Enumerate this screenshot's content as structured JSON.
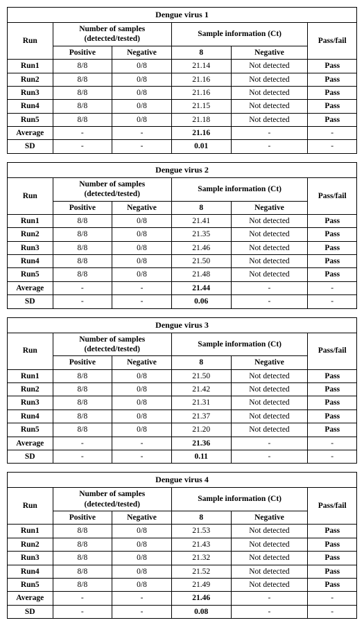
{
  "tables": [
    {
      "title": "Dengue  virus  1",
      "header": {
        "run": "Run",
        "num_samples_line1": "Number  of  samples",
        "num_samples_line2": "(detected/tested)",
        "sample_info": "Sample  information  (Ct)",
        "passfail": "Pass/fail",
        "positive": "Positive",
        "negative": "Negative",
        "ct_pos": "8",
        "ct_neg": "Negative"
      },
      "rows": [
        {
          "label": "Run1",
          "pos": "8/8",
          "neg": "0/8",
          "ct": "21.14",
          "ctneg": "Not  detected",
          "pf": "Pass"
        },
        {
          "label": "Run2",
          "pos": "8/8",
          "neg": "0/8",
          "ct": "21.16",
          "ctneg": "Not  detected",
          "pf": "Pass"
        },
        {
          "label": "Run3",
          "pos": "8/8",
          "neg": "0/8",
          "ct": "21.16",
          "ctneg": "Not  detected",
          "pf": "Pass"
        },
        {
          "label": "Run4",
          "pos": "8/8",
          "neg": "0/8",
          "ct": "21.15",
          "ctneg": "Not  detected",
          "pf": "Pass"
        },
        {
          "label": "Run5",
          "pos": "8/8",
          "neg": "0/8",
          "ct": "21.18",
          "ctneg": "Not  detected",
          "pf": "Pass"
        }
      ],
      "summary": [
        {
          "label": "Average",
          "pos": "-",
          "neg": "-",
          "ct": "21.16",
          "ctneg": "-",
          "pf": "-",
          "bold_ct": true
        },
        {
          "label": "SD",
          "pos": "-",
          "neg": "-",
          "ct": "0.01",
          "ctneg": "-",
          "pf": "-",
          "bold_ct": true
        }
      ]
    },
    {
      "title": "Dengue  virus  2",
      "header": {
        "run": "Run",
        "num_samples_line1": "Number  of  samples",
        "num_samples_line2": "(detected/tested)",
        "sample_info": "Sample  information  (Ct)",
        "passfail": "Pass/fail",
        "positive": "Positive",
        "negative": "Negative",
        "ct_pos": "8",
        "ct_neg": "Negative"
      },
      "rows": [
        {
          "label": "Run1",
          "pos": "8/8",
          "neg": "0/8",
          "ct": "21.41",
          "ctneg": "Not  detected",
          "pf": "Pass"
        },
        {
          "label": "Run2",
          "pos": "8/8",
          "neg": "0/8",
          "ct": "21.35",
          "ctneg": "Not  detected",
          "pf": "Pass"
        },
        {
          "label": "Run3",
          "pos": "8/8",
          "neg": "0/8",
          "ct": "21.46",
          "ctneg": "Not  detected",
          "pf": "Pass"
        },
        {
          "label": "Run4",
          "pos": "8/8",
          "neg": "0/8",
          "ct": "21.50",
          "ctneg": "Not  detected",
          "pf": "Pass"
        },
        {
          "label": "Run5",
          "pos": "8/8",
          "neg": "0/8",
          "ct": "21.48",
          "ctneg": "Not  detected",
          "pf": "Pass"
        }
      ],
      "summary": [
        {
          "label": "Average",
          "pos": "-",
          "neg": "-",
          "ct": "21.44",
          "ctneg": "-",
          "pf": "-",
          "bold_ct": true
        },
        {
          "label": "SD",
          "pos": "-",
          "neg": "-",
          "ct": "0.06",
          "ctneg": "-",
          "pf": "-",
          "bold_ct": true
        }
      ]
    },
    {
      "title": "Dengue  virus  3",
      "header": {
        "run": "Run",
        "num_samples_line1": "Number  of  samples",
        "num_samples_line2": "(detected/tested)",
        "sample_info": "Sample  information  (Ct)",
        "passfail": "Pass/fail",
        "positive": "Positive",
        "negative": "Negative",
        "ct_pos": "8",
        "ct_neg": "Negative"
      },
      "rows": [
        {
          "label": "Run1",
          "pos": "8/8",
          "neg": "0/8",
          "ct": "21.50",
          "ctneg": "Not  detected",
          "pf": "Pass"
        },
        {
          "label": "Run2",
          "pos": "8/8",
          "neg": "0/8",
          "ct": "21.42",
          "ctneg": "Not  detected",
          "pf": "Pass"
        },
        {
          "label": "Run3",
          "pos": "8/8",
          "neg": "0/8",
          "ct": "21.31",
          "ctneg": "Not  detected",
          "pf": "Pass"
        },
        {
          "label": "Run4",
          "pos": "8/8",
          "neg": "0/8",
          "ct": "21.37",
          "ctneg": "Not  detected",
          "pf": "Pass"
        },
        {
          "label": "Run5",
          "pos": "8/8",
          "neg": "0/8",
          "ct": "21.20",
          "ctneg": "Not  detected",
          "pf": "Pass"
        }
      ],
      "summary": [
        {
          "label": "Average",
          "pos": "-",
          "neg": "-",
          "ct": "21.36",
          "ctneg": "-",
          "pf": "-",
          "bold_ct": true
        },
        {
          "label": "SD",
          "pos": "-",
          "neg": "-",
          "ct": "0.11",
          "ctneg": "-",
          "pf": "-",
          "bold_ct": true
        }
      ]
    },
    {
      "title": "Dengue  virus  4",
      "header": {
        "run": "Run",
        "num_samples_line1": "Number  of  samples",
        "num_samples_line2": "(detected/tested)",
        "sample_info": "Sample  information  (Ct)",
        "passfail": "Pass/fail",
        "positive": "Positive",
        "negative": "Negative",
        "ct_pos": "8",
        "ct_neg": "Negative"
      },
      "rows": [
        {
          "label": "Run1",
          "pos": "8/8",
          "neg": "0/8",
          "ct": "21.53",
          "ctneg": "Not  detected",
          "pf": "Pass"
        },
        {
          "label": "Run2",
          "pos": "8/8",
          "neg": "0/8",
          "ct": "21.43",
          "ctneg": "Not  detected",
          "pf": "Pass"
        },
        {
          "label": "Run3",
          "pos": "8/8",
          "neg": "0/8",
          "ct": "21.32",
          "ctneg": "Not  detected",
          "pf": "Pass"
        },
        {
          "label": "Run4",
          "pos": "8/8",
          "neg": "0/8",
          "ct": "21.52",
          "ctneg": "Not  detected",
          "pf": "Pass"
        },
        {
          "label": "Run5",
          "pos": "8/8",
          "neg": "0/8",
          "ct": "21.49",
          "ctneg": "Not  detected",
          "pf": "Pass"
        }
      ],
      "summary": [
        {
          "label": "Average",
          "pos": "-",
          "neg": "-",
          "ct": "21.46",
          "ctneg": "-",
          "pf": "-",
          "bold_ct": true
        },
        {
          "label": "SD",
          "pos": "-",
          "neg": "-",
          "ct": "0.08",
          "ctneg": "-",
          "pf": "-",
          "bold_ct": true
        }
      ]
    }
  ],
  "col_widths_pct": [
    13,
    17,
    17,
    17,
    22,
    14
  ]
}
